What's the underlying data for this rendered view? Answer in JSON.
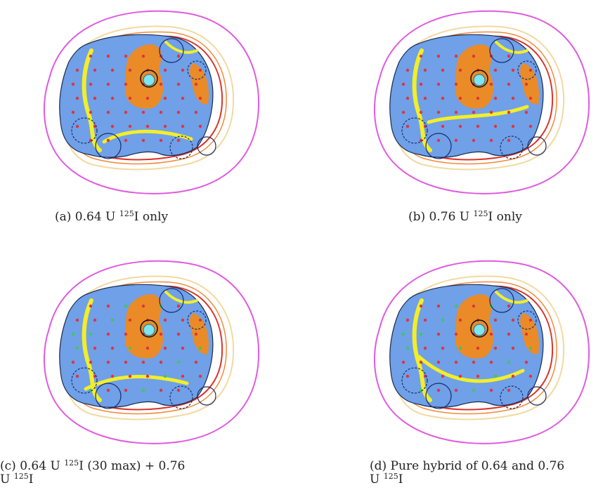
{
  "panels": [
    {
      "id": "a",
      "caption": {
        "prefix": "(a) 0.64 U ",
        "sup": "125",
        "suffix": "I only",
        "line2": "",
        "line2_sup": "",
        "line2_suffix": ""
      }
    },
    {
      "id": "b",
      "caption": {
        "prefix": "(b) 0.76 U ",
        "sup": "125",
        "suffix": "I only",
        "line2": "",
        "line2_sup": "",
        "line2_suffix": ""
      }
    },
    {
      "id": "c",
      "caption": {
        "prefix": "(c) 0.64 U ",
        "sup": "125",
        "suffix": "I (30 max) + 0.76",
        "line2": "U ",
        "line2_sup": "125",
        "line2_suffix": "I"
      }
    },
    {
      "id": "d",
      "caption": {
        "prefix": "(d) Pure hybrid of 0.64 and 0.76",
        "sup": "",
        "suffix": "",
        "line2": "U ",
        "line2_sup": "125",
        "line2_suffix": "I"
      }
    }
  ],
  "colors": {
    "outer_contour": "#e05ae0",
    "contour_red": "#d9342b",
    "contour_orange": "#f08a3a",
    "contour_pale": "#f2d9a0",
    "prostate_fill": "#6fa0e8",
    "hot_zone": "#f08a1e",
    "mid_zone": "#f2ee2a",
    "seed": "#e0343a",
    "urethra": "#7ee6ee",
    "needle_circle": "#1a2a6a"
  }
}
